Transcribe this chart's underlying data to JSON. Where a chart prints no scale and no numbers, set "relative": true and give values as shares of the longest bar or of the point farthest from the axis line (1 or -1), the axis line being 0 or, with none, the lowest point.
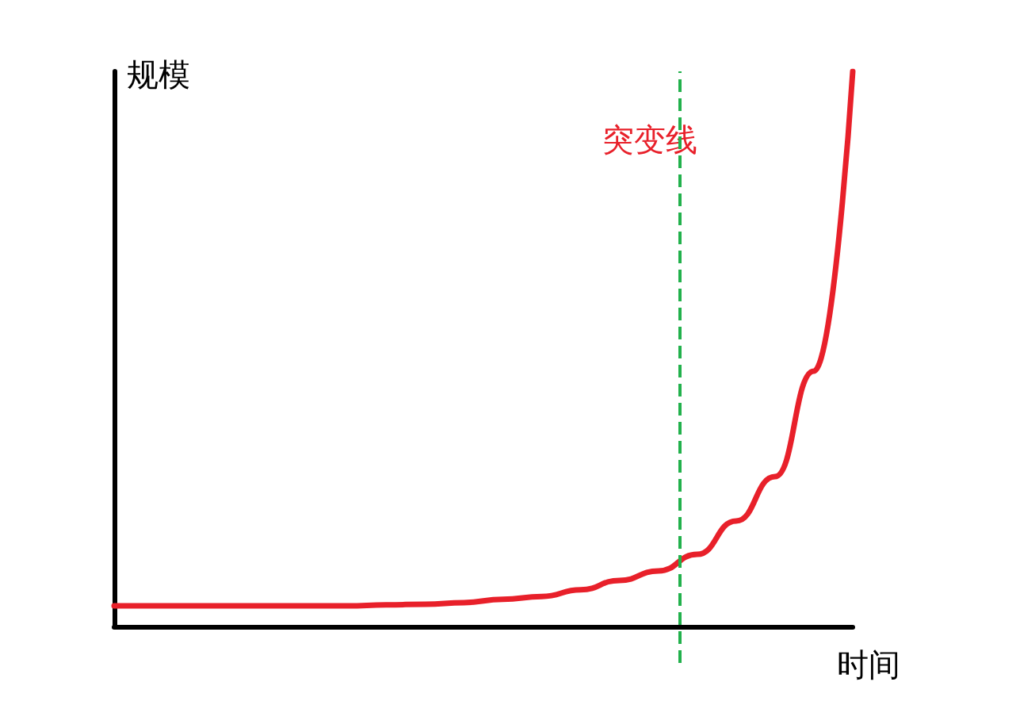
{
  "chart_data": {
    "type": "line",
    "relative": true,
    "ylabel": "规模",
    "xlabel": "时间",
    "categories": [
      null,
      null,
      null,
      null,
      null,
      null,
      null,
      null,
      null,
      null,
      null,
      null,
      null,
      null,
      null,
      null,
      null,
      null,
      null,
      null
    ],
    "series": [
      {
        "color": "#e8202a",
        "values": [
          0.037,
          0.037,
          0.037,
          0.037,
          0.037,
          0.037,
          0.037,
          0.039,
          0.04,
          0.043,
          0.049,
          0.054,
          0.066,
          0.083,
          0.1,
          0.13,
          0.19,
          0.27,
          0.46,
          1
        ]
      }
    ],
    "annotations": [
      "突变线"
    ],
    "grid": false,
    "tick_labels": false,
    "marker": "none",
    "line_style": "solid"
  }
}
